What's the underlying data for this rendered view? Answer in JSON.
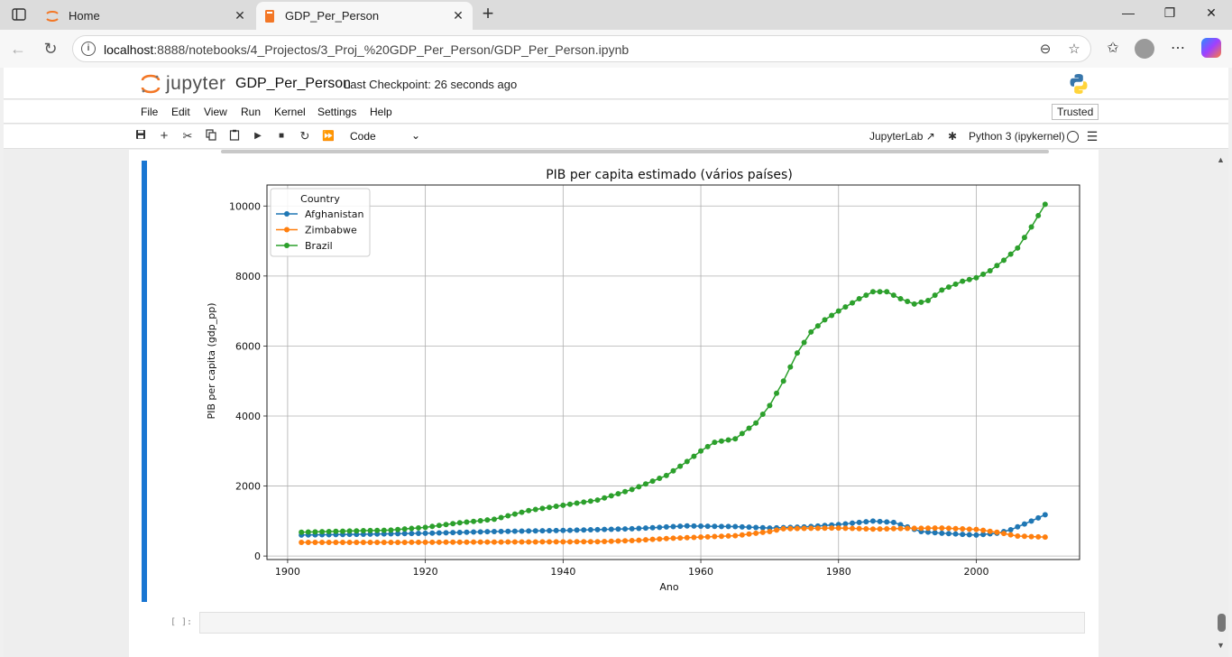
{
  "browser": {
    "tabs": [
      {
        "label": "Home"
      },
      {
        "label": "GDP_Per_Person"
      }
    ],
    "url": {
      "host": "localhost",
      "rest": ":8888/notebooks/4_Projectos/3_Proj_%20GDP_Per_Person/GDP_Per_Person.ipynb"
    }
  },
  "jupyter": {
    "logo_text": "jupyter",
    "notebook_title": "GDP_Per_Person",
    "checkpoint": "Last Checkpoint: 26 seconds ago",
    "menu": [
      "File",
      "Edit",
      "View",
      "Run",
      "Kernel",
      "Settings",
      "Help"
    ],
    "trusted_label": "Trusted",
    "cell_type": "Code",
    "jupyterlab_label": "JupyterLab",
    "kernel_label": "Python 3 (ipykernel)",
    "empty_prompt": "[ ]:"
  },
  "colors": {
    "afghanistan": "#1f77b4",
    "zimbabwe": "#ff7f0e",
    "brazil": "#2ca02c",
    "cell_bar": "#1976d2"
  },
  "chart_data": {
    "type": "line",
    "title": "PIB per capita estimado (vários países)",
    "xlabel": "Ano",
    "ylabel": "PIB per capita (gdp_pp)",
    "xlim": [
      1897,
      2015
    ],
    "ylim": [
      -100,
      10600
    ],
    "xticks": [
      1900,
      1920,
      1940,
      1960,
      1980,
      2000
    ],
    "yticks": [
      0,
      2000,
      4000,
      6000,
      8000,
      10000
    ],
    "grid": true,
    "legend": {
      "title": "Country",
      "position": "top-left"
    },
    "markers": true,
    "x_start": 1902,
    "x_end": 2010,
    "series": [
      {
        "name": "Afghanistan",
        "color": "#1f77b4",
        "points": [
          [
            1902,
            600
          ],
          [
            1910,
            620
          ],
          [
            1920,
            650
          ],
          [
            1930,
            700
          ],
          [
            1940,
            730
          ],
          [
            1950,
            780
          ],
          [
            1958,
            860
          ],
          [
            1965,
            840
          ],
          [
            1970,
            800
          ],
          [
            1975,
            830
          ],
          [
            1980,
            900
          ],
          [
            1985,
            1000
          ],
          [
            1988,
            960
          ],
          [
            1990,
            830
          ],
          [
            1992,
            700
          ],
          [
            1995,
            650
          ],
          [
            2000,
            600
          ],
          [
            2003,
            650
          ],
          [
            2005,
            750
          ],
          [
            2008,
            1000
          ],
          [
            2010,
            1180
          ]
        ]
      },
      {
        "name": "Zimbabwe",
        "color": "#ff7f0e",
        "points": [
          [
            1902,
            390
          ],
          [
            1915,
            390
          ],
          [
            1930,
            400
          ],
          [
            1945,
            410
          ],
          [
            1950,
            440
          ],
          [
            1955,
            500
          ],
          [
            1960,
            540
          ],
          [
            1965,
            580
          ],
          [
            1970,
            700
          ],
          [
            1972,
            780
          ],
          [
            1975,
            790
          ],
          [
            1980,
            800
          ],
          [
            1985,
            770
          ],
          [
            1990,
            790
          ],
          [
            1995,
            800
          ],
          [
            2000,
            760
          ],
          [
            2003,
            680
          ],
          [
            2006,
            570
          ],
          [
            2010,
            540
          ]
        ]
      },
      {
        "name": "Brazil",
        "color": "#2ca02c",
        "points": [
          [
            1902,
            680
          ],
          [
            1910,
            720
          ],
          [
            1915,
            740
          ],
          [
            1920,
            820
          ],
          [
            1925,
            950
          ],
          [
            1930,
            1050
          ],
          [
            1935,
            1300
          ],
          [
            1940,
            1450
          ],
          [
            1945,
            1600
          ],
          [
            1950,
            1900
          ],
          [
            1955,
            2300
          ],
          [
            1958,
            2700
          ],
          [
            1960,
            3000
          ],
          [
            1962,
            3250
          ],
          [
            1965,
            3350
          ],
          [
            1968,
            3800
          ],
          [
            1970,
            4300
          ],
          [
            1972,
            5000
          ],
          [
            1974,
            5800
          ],
          [
            1976,
            6400
          ],
          [
            1978,
            6750
          ],
          [
            1980,
            7000
          ],
          [
            1983,
            7350
          ],
          [
            1985,
            7550
          ],
          [
            1987,
            7550
          ],
          [
            1989,
            7350
          ],
          [
            1991,
            7200
          ],
          [
            1993,
            7300
          ],
          [
            1995,
            7600
          ],
          [
            1998,
            7850
          ],
          [
            2000,
            7950
          ],
          [
            2002,
            8150
          ],
          [
            2004,
            8450
          ],
          [
            2006,
            8800
          ],
          [
            2008,
            9400
          ],
          [
            2010,
            10050
          ]
        ]
      }
    ]
  }
}
